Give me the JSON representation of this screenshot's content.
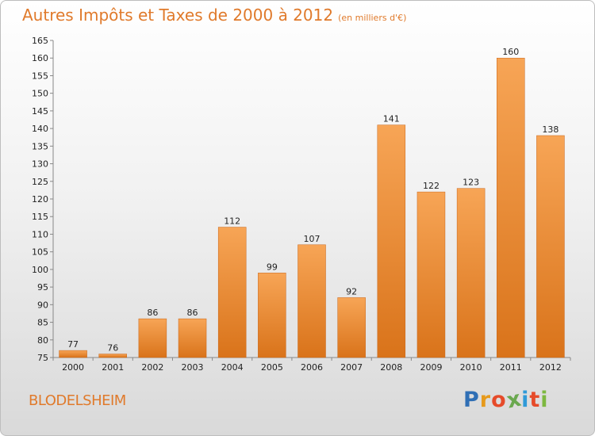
{
  "header": {
    "title": "Autres Impôts et Taxes de 2000 à 2012",
    "subtitle": "(en milliers d'€)"
  },
  "footer": {
    "commune": "BLODELSHEIM",
    "logo_letters": [
      "P",
      "r",
      "o",
      "x",
      "i",
      "t",
      "i"
    ],
    "logo_colors": [
      "#2f6fb5",
      "#e69a1c",
      "#e64b2a",
      "#6aa84f",
      "#2f9ad8",
      "#e64b2a",
      "#7db840"
    ]
  },
  "colors": {
    "bar_top": "#f7a556",
    "bar_bottom": "#d9731a",
    "bar_stroke": "#c8661a",
    "accent": "#e07a2b"
  },
  "chart_data": {
    "type": "bar",
    "title": "Autres Impôts et Taxes de 2000 à 2012",
    "subtitle": "(en milliers d'€)",
    "categories": [
      "2000",
      "2001",
      "2002",
      "2003",
      "2004",
      "2005",
      "2006",
      "2007",
      "2008",
      "2009",
      "2010",
      "2011",
      "2012"
    ],
    "values": [
      77,
      76,
      86,
      86,
      112,
      99,
      107,
      92,
      141,
      122,
      123,
      160,
      138
    ],
    "ylim": [
      75,
      165
    ],
    "yticks": [
      75,
      80,
      85,
      90,
      95,
      100,
      105,
      110,
      115,
      120,
      125,
      130,
      135,
      140,
      145,
      150,
      155,
      160,
      165
    ],
    "grid": false,
    "xlabel": "",
    "ylabel": ""
  }
}
